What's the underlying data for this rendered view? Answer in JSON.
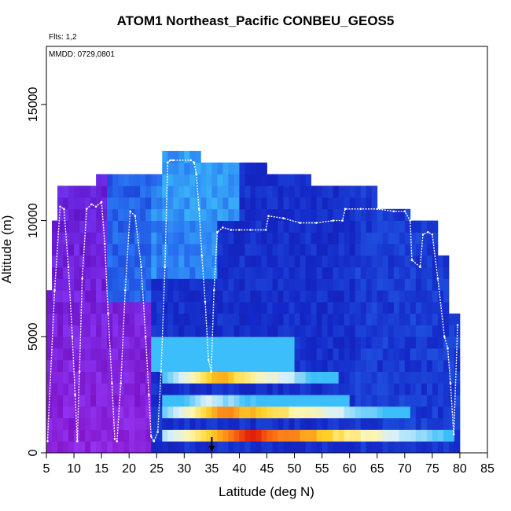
{
  "header": {
    "title": "ATOM1 Northeast_Pacific CONBEU_GEOS5",
    "flights": "Flts: 1,2",
    "dates": "MMDD: 0729,0801"
  },
  "chart_data": {
    "type": "heatmap",
    "title": "ATOM1 Northeast_Pacific CONBEU_GEOS5",
    "xlabel": "Latitude (deg N)",
    "ylabel": "Altitude (m)",
    "xlim": [
      5,
      85
    ],
    "ylim": [
      0,
      17500
    ],
    "x_ticks": [
      "5",
      "10",
      "15",
      "20",
      "25",
      "30",
      "35",
      "40",
      "45",
      "50",
      "55",
      "60",
      "65",
      "70",
      "75",
      "80",
      "85"
    ],
    "x_tick_values": [
      5,
      10,
      15,
      20,
      25,
      30,
      35,
      40,
      45,
      50,
      55,
      60,
      65,
      70,
      75,
      80,
      85
    ],
    "y_ticks": [
      "0",
      "5000",
      "10000",
      "15000"
    ],
    "y_tick_values": [
      0,
      5000,
      10000,
      15000
    ],
    "grid": false,
    "marker": {
      "latitude": 35,
      "altitude": 0,
      "shape": "down-arrow"
    },
    "column_tops": [
      {
        "lat0": 5,
        "lat1": 6,
        "top": 7000
      },
      {
        "lat0": 6,
        "lat1": 7,
        "top": 10000
      },
      {
        "lat0": 7,
        "lat1": 14,
        "top": 11500
      },
      {
        "lat0": 14,
        "lat1": 26,
        "top": 12000
      },
      {
        "lat0": 26,
        "lat1": 33,
        "top": 12900
      },
      {
        "lat0": 33,
        "lat1": 45,
        "top": 12500
      },
      {
        "lat0": 45,
        "lat1": 53,
        "top": 12000
      },
      {
        "lat0": 53,
        "lat1": 65,
        "top": 11500
      },
      {
        "lat0": 65,
        "lat1": 71,
        "top": 10500
      },
      {
        "lat0": 71,
        "lat1": 76,
        "top": 10000
      },
      {
        "lat0": 76,
        "lat1": 78,
        "top": 8500
      },
      {
        "lat0": 78,
        "lat1": 79,
        "top": 6000
      },
      {
        "lat0": 79,
        "lat1": 80,
        "top": 6000
      }
    ],
    "plume_layers": [
      {
        "lat0": 26,
        "lat1": 79,
        "alt0": 500,
        "alt1": 1000,
        "peak_lat": 42,
        "peak_level": 1.0,
        "fade_lat": 79
      },
      {
        "lat0": 26,
        "lat1": 71,
        "alt0": 1500,
        "alt1": 2000,
        "peak_lat": 37,
        "peak_level": 0.9,
        "fade_lat": 71
      },
      {
        "lat0": 26,
        "lat1": 60,
        "alt0": 2000,
        "alt1": 2500,
        "peak_lat": 34,
        "peak_level": 0.6,
        "fade_lat": 55
      },
      {
        "lat0": 26,
        "lat1": 58,
        "alt0": 3000,
        "alt1": 3500,
        "peak_lat": 36,
        "peak_level": 0.85,
        "fade_lat": 58
      },
      {
        "lat0": 24,
        "lat1": 50,
        "alt0": 3500,
        "alt1": 5000,
        "peak_lat": 34,
        "peak_level": 0.35,
        "fade_lat": 50
      }
    ],
    "flight_track": {
      "latitude": [
        5.2,
        6.5,
        7.5,
        8.2,
        9.0,
        9.7,
        10.2,
        10.6,
        11.0,
        11.5,
        12.3,
        13.2,
        14.0,
        15.0,
        15.6,
        16.2,
        16.9,
        17.4,
        17.8,
        18.5,
        19.3,
        20.2,
        21.1,
        22.2,
        23.0,
        23.6,
        24.0,
        24.5,
        25.2,
        25.8,
        26.5,
        27.0,
        27.5,
        28.0,
        31.2,
        31.8,
        32.2,
        32.7,
        33.2,
        33.8,
        34.4,
        34.9,
        35.4,
        36.0,
        37.0,
        38.5,
        40.0,
        42.0,
        44.8,
        45.3,
        48.0,
        51.0,
        54.0,
        57.0,
        58.7,
        59.2,
        62.0,
        65.0,
        68.0,
        70.0,
        71.0,
        71.3,
        72.8,
        73.3,
        74.2,
        75.0,
        76.0,
        77.2,
        77.8,
        78.3,
        78.9,
        79.6
      ],
      "altitude": [
        500,
        7000,
        10600,
        10500,
        8000,
        5000,
        2500,
        500,
        3500,
        7500,
        10500,
        10700,
        10600,
        10800,
        9000,
        6000,
        3000,
        600,
        500,
        3000,
        7000,
        10400,
        10200,
        8000,
        5000,
        2500,
        700,
        500,
        900,
        3500,
        8000,
        12500,
        12600,
        12600,
        12600,
        12500,
        12000,
        10500,
        8500,
        6500,
        4000,
        3500,
        7000,
        9500,
        9700,
        9600,
        9600,
        9600,
        9600,
        10200,
        10100,
        9900,
        9900,
        10000,
        10000,
        10500,
        10500,
        10500,
        10400,
        10400,
        10000,
        8300,
        8000,
        9400,
        9500,
        9400,
        7500,
        5000,
        4500,
        3000,
        800,
        5500
      ]
    }
  }
}
